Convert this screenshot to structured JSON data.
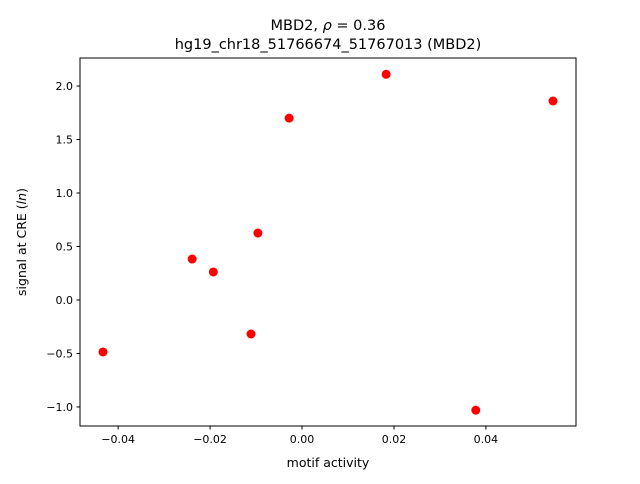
{
  "chart_data": {
    "type": "scatter",
    "title_line1_prefix": "MBD2, ",
    "title_rho_symbol": "ρ",
    "title_rho_value": " = 0.36",
    "title_line2": "hg19_chr18_51766674_51767013 (MBD2)",
    "xlabel": "motif activity",
    "ylabel_prefix": "signal at CRE (",
    "ylabel_italic": "ln",
    "ylabel_suffix": ")",
    "xlim": [
      -0.0483,
      0.0596
    ],
    "ylim": [
      -1.178,
      2.262
    ],
    "xticks": [
      -0.04,
      -0.02,
      0.0,
      0.02,
      0.04
    ],
    "xtick_labels": [
      "−0.04",
      "−0.02",
      "0.00",
      "0.02",
      "0.04"
    ],
    "yticks": [
      -1.0,
      -0.5,
      0.0,
      0.5,
      1.0,
      1.5,
      2.0
    ],
    "ytick_labels": [
      "−1.0",
      "−0.5",
      "0.0",
      "0.5",
      "1.0",
      "1.5",
      "2.0"
    ],
    "grid": false,
    "marker_color": "#ff0000",
    "points": [
      {
        "x": -0.0433,
        "y": -0.486
      },
      {
        "x": -0.0239,
        "y": 0.383
      },
      {
        "x": -0.0193,
        "y": 0.262
      },
      {
        "x": -0.0111,
        "y": -0.318
      },
      {
        "x": -0.0096,
        "y": 0.626
      },
      {
        "x": -0.0028,
        "y": 1.7
      },
      {
        "x": 0.0183,
        "y": 2.11
      },
      {
        "x": 0.0378,
        "y": -1.03
      },
      {
        "x": 0.0546,
        "y": 1.86
      }
    ]
  }
}
